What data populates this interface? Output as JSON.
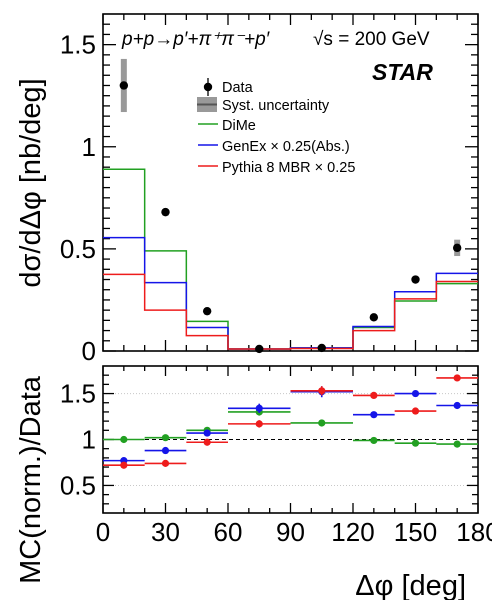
{
  "chart_data": [
    {
      "type": "line",
      "ylabel": "dσ/dΔφ [nb/deg]",
      "xlim": [
        0,
        180
      ],
      "ylim": [
        0,
        1.65
      ],
      "y_ticks": [
        "0",
        "0.5",
        "1",
        "1.5"
      ],
      "y_tick_values": [
        0,
        0.5,
        1,
        1.5
      ],
      "process_label": "p+p→p′+π⁺π⁻+p′",
      "energy_label": "√s = 200 GeV",
      "experiment_label": "STAR",
      "legend": [
        "Data",
        "Syst. uncertainty",
        "DiMe",
        "GenEx × 0.25(Abs.)",
        "Pythia 8 MBR × 0.25"
      ],
      "bin_edges": [
        0,
        20,
        40,
        60,
        90,
        120,
        140,
        160,
        180
      ],
      "data": {
        "x": [
          10,
          30,
          50,
          75,
          105,
          130,
          150,
          170
        ],
        "y": [
          1.3,
          0.68,
          0.195,
          0.01,
          0.015,
          0.165,
          0.35,
          0.505
        ],
        "syst": [
          0.13,
          0,
          0,
          0,
          0,
          0,
          0,
          0.04
        ]
      },
      "series": [
        {
          "name": "DiMe",
          "color": "#22a022",
          "values": [
            0.89,
            0.49,
            0.145,
            0.01,
            0.015,
            0.115,
            0.245,
            0.33
          ]
        },
        {
          "name": "GenEx × 0.25(Abs.)",
          "color": "#1515e8",
          "values": [
            0.555,
            0.335,
            0.115,
            0.01,
            0.015,
            0.12,
            0.29,
            0.38
          ]
        },
        {
          "name": "Pythia 8 MBR × 0.25",
          "color": "#ee1c1c",
          "values": [
            0.375,
            0.2,
            0.075,
            0.01,
            0.012,
            0.1,
            0.255,
            0.34
          ]
        }
      ]
    },
    {
      "type": "scatter",
      "xlabel": "Δφ [deg]",
      "ylabel": "MC(norm.)/Data",
      "xlim": [
        0,
        180
      ],
      "ylim": [
        0.2,
        1.8
      ],
      "x_ticks": [
        "0",
        "30",
        "60",
        "90",
        "120",
        "150",
        "180"
      ],
      "x_tick_values": [
        0,
        30,
        60,
        90,
        120,
        150,
        180
      ],
      "y_ticks": [
        "0.5",
        "1",
        "1.5"
      ],
      "y_tick_values": [
        0.5,
        1,
        1.5
      ],
      "reference_line": 1,
      "grid_lines": [
        0.5,
        1.5
      ],
      "series": [
        {
          "name": "DiMe",
          "color": "#22a022",
          "points": [
            [
              10,
              1.0,
              10,
              0.01
            ],
            [
              30,
              1.02,
              10,
              0.01
            ],
            [
              50,
              1.1,
              10,
              0.02
            ],
            [
              75,
              1.3,
              15,
              0.04
            ],
            [
              105,
              1.18,
              15,
              0.03
            ],
            [
              130,
              0.99,
              10,
              0.01
            ],
            [
              150,
              0.96,
              10,
              0.01
            ],
            [
              170,
              0.95,
              10,
              0.01
            ]
          ]
        },
        {
          "name": "GenEx × 0.25(Abs.)",
          "color": "#1515e8",
          "points": [
            [
              10,
              0.77,
              10,
              0.01
            ],
            [
              30,
              0.88,
              10,
              0.01
            ],
            [
              50,
              1.07,
              10,
              0.02
            ],
            [
              75,
              1.34,
              15,
              0.05
            ],
            [
              105,
              1.52,
              15,
              0.06
            ],
            [
              130,
              1.27,
              10,
              0.02
            ],
            [
              150,
              1.5,
              10,
              0.02
            ],
            [
              170,
              1.37,
              10,
              0.02
            ]
          ]
        },
        {
          "name": "Pythia 8 MBR × 0.25",
          "color": "#ee1c1c",
          "points": [
            [
              10,
              0.72,
              10,
              0.01
            ],
            [
              30,
              0.74,
              10,
              0.01
            ],
            [
              50,
              0.97,
              10,
              0.02
            ],
            [
              75,
              1.17,
              15,
              0.04
            ],
            [
              105,
              1.53,
              15,
              0.05
            ],
            [
              130,
              1.48,
              10,
              0.02
            ],
            [
              150,
              1.31,
              10,
              0.02
            ],
            [
              170,
              1.67,
              10,
              0.02
            ]
          ]
        }
      ]
    }
  ]
}
